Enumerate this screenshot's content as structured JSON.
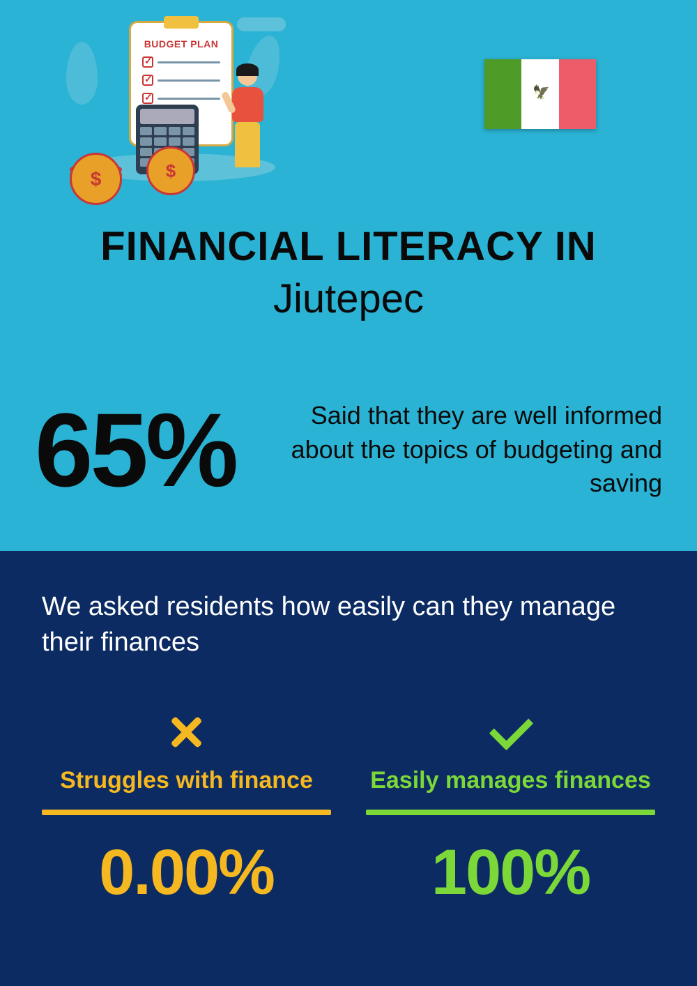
{
  "colors": {
    "top_bg": "#2ab3d4",
    "bottom_bg": "#0c2b63",
    "text_dark": "#0a0a0a",
    "text_light": "#ffffff",
    "accent_yellow": "#f5b820",
    "accent_green": "#7bd838",
    "flag_green": "#4f9b28",
    "flag_white": "#ffffff",
    "flag_red": "#ef5c69"
  },
  "illustration": {
    "budget_label": "BUDGET PLAN"
  },
  "title": {
    "main": "FINANCIAL LITERACY IN",
    "location": "Jiutepec"
  },
  "headline_stat": {
    "percent": "65%",
    "description": "Said that they are well informed about the topics of budgeting and saving"
  },
  "question": "We asked residents how easily can they manage their finances",
  "responses": {
    "struggles": {
      "label": "Struggles with finance",
      "value": "0.00%"
    },
    "manages": {
      "label": "Easily manages finances",
      "value": "100%"
    }
  }
}
